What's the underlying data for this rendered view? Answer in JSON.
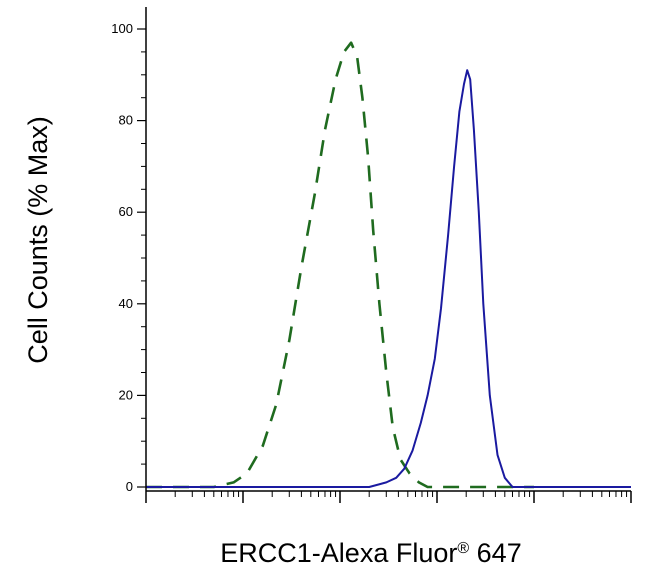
{
  "chart_data": {
    "type": "line",
    "title": "",
    "xlabel_main": "ERCC1-Alexa Fluor",
    "xlabel_mark": "®",
    "xlabel_suffix": " 647",
    "ylabel": "Cell Counts (% Max)",
    "x_scale": "log",
    "xlim": [
      1,
      100000
    ],
    "ylim": [
      0,
      100
    ],
    "y_ticks": [
      0,
      20,
      40,
      60,
      80,
      100
    ],
    "grid": false,
    "legend": "none",
    "series": [
      {
        "style": "dashed",
        "color": "#1f6b1f",
        "x": [
          1,
          3,
          5,
          8,
          11,
          16,
          22,
          30,
          40,
          55,
          70,
          90,
          110,
          130,
          150,
          170,
          195,
          220,
          255,
          300,
          350,
          420,
          520,
          650,
          800,
          1000,
          1200,
          1600,
          2500,
          4000,
          10000
        ],
        "y": [
          0,
          0,
          0,
          1,
          3,
          9,
          18,
          32,
          48,
          64,
          78,
          89,
          95,
          97,
          94,
          85,
          72,
          56,
          40,
          25,
          13,
          6,
          3,
          1,
          0,
          0,
          0,
          0,
          0,
          0,
          0
        ]
      },
      {
        "style": "solid",
        "color": "#1a1aa0",
        "x": [
          1,
          100,
          200,
          300,
          380,
          460,
          560,
          680,
          800,
          950,
          1100,
          1300,
          1500,
          1700,
          1900,
          2050,
          2200,
          2400,
          2700,
          3000,
          3500,
          4200,
          5000,
          6000,
          7500,
          10000,
          30000,
          100000
        ],
        "y": [
          0,
          0,
          0,
          1,
          2,
          4,
          8,
          14,
          20,
          28,
          39,
          55,
          70,
          82,
          88,
          91,
          89,
          78,
          60,
          40,
          20,
          7,
          2,
          0,
          0,
          0,
          0,
          0
        ]
      }
    ]
  }
}
